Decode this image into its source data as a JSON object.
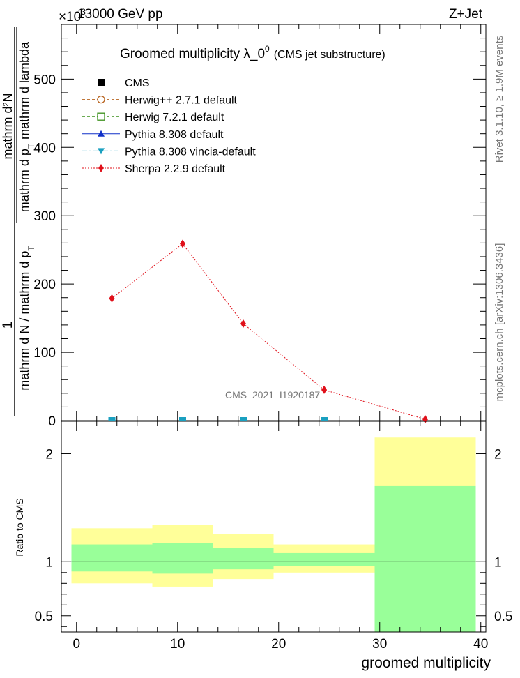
{
  "header": {
    "left": "13000 GeV pp",
    "right": "Z+Jet",
    "exponent": "×10",
    "exponent_power": "3"
  },
  "side_labels": {
    "rivet": "Rivet 3.1.10, ≥ 1.9M events",
    "mcplots": "mcplots.cern.ch [arXiv:1306.3436]"
  },
  "chart_data": [
    {
      "type": "line",
      "title": "Groomed multiplicity  λ_0",
      "title_superscript": "0",
      "title_suffix": "(CMS jet substructure)",
      "watermark": "CMS_2021_I1920187",
      "ylabel_parts": {
        "numerator_one": "1",
        "numerator_two": "mathrm d²N",
        "denominator_one": "mathrm d N / mathrm d p",
        "denominator_sub": "T",
        "denominator_two": "mathrm d p",
        "denominator_two_sub": "T",
        "denominator_three": "mathrm d lambda"
      },
      "ylim": [
        0,
        580
      ],
      "yticks": [
        0,
        100,
        200,
        300,
        400,
        500
      ],
      "ytick_labels": [
        "0",
        "100",
        "200",
        "300",
        "400",
        "500"
      ],
      "xlim": [
        -1.5,
        40.5
      ],
      "legend": [
        {
          "name": "CMS",
          "color": "#000000",
          "marker": "square-filled",
          "line": "none"
        },
        {
          "name": "Herwig++ 2.7.1 default",
          "color": "#b8641f",
          "marker": "circle-open",
          "line": "dashed"
        },
        {
          "name": "Herwig 7.2.1 default",
          "color": "#3a8f1a",
          "marker": "square-open",
          "line": "dashed"
        },
        {
          "name": "Pythia 8.308 default",
          "color": "#1030c8",
          "marker": "triangle-up",
          "line": "solid"
        },
        {
          "name": "Pythia 8.308 vincia-default",
          "color": "#1aa0c0",
          "marker": "triangle-down",
          "line": "dashdot"
        },
        {
          "name": "Sherpa 2.2.9 default",
          "color": "#e0101a",
          "marker": "diamond",
          "line": "dotted"
        }
      ],
      "series": [
        {
          "name": "Sherpa 2.2.9 default",
          "color": "#e0101a",
          "x": [
            3.5,
            10.5,
            16.5,
            24.5,
            34.5
          ],
          "values": [
            179,
            259,
            142,
            45,
            2
          ]
        },
        {
          "name": "Pythia 8.308 vincia-default",
          "color": "#1aa0c0",
          "x": [
            3.5,
            10.5,
            16.5,
            24.5
          ],
          "values": [
            0,
            0,
            0,
            0
          ]
        }
      ],
      "grid": false,
      "legend_position": "top-left"
    },
    {
      "type": "area",
      "ylabel": "Ratio to CMS",
      "xlabel": "groomed multiplicity",
      "xlim": [
        -1.5,
        40.5
      ],
      "xticks": [
        0,
        10,
        20,
        30,
        40
      ],
      "xtick_labels": [
        "0",
        "10",
        "20",
        "30",
        "40"
      ],
      "ylim": [
        0.35,
        2.3
      ],
      "yticks": [
        0.5,
        1,
        2
      ],
      "ytick_labels": [
        "0.5",
        "1",
        "2"
      ],
      "bins": [
        {
          "xlo": -0.5,
          "xhi": 7.5,
          "stat_lo": 0.91,
          "stat_hi": 1.16,
          "tot_lo": 0.8,
          "tot_hi": 1.31
        },
        {
          "xlo": 7.5,
          "xhi": 13.5,
          "stat_lo": 0.89,
          "stat_hi": 1.17,
          "tot_lo": 0.77,
          "tot_hi": 1.34
        },
        {
          "xlo": 13.5,
          "xhi": 19.5,
          "stat_lo": 0.93,
          "stat_hi": 1.13,
          "tot_lo": 0.84,
          "tot_hi": 1.26
        },
        {
          "xlo": 19.5,
          "xhi": 29.5,
          "stat_lo": 0.96,
          "stat_hi": 1.08,
          "tot_lo": 0.9,
          "tot_hi": 1.16
        },
        {
          "xlo": 29.5,
          "xhi": 39.5,
          "stat_lo": 0.35,
          "stat_hi": 1.7,
          "tot_lo": 0.35,
          "tot_hi": 2.15
        }
      ],
      "stat_color": "#99ff99",
      "total_color": "#ffff99",
      "reference": 1
    }
  ]
}
